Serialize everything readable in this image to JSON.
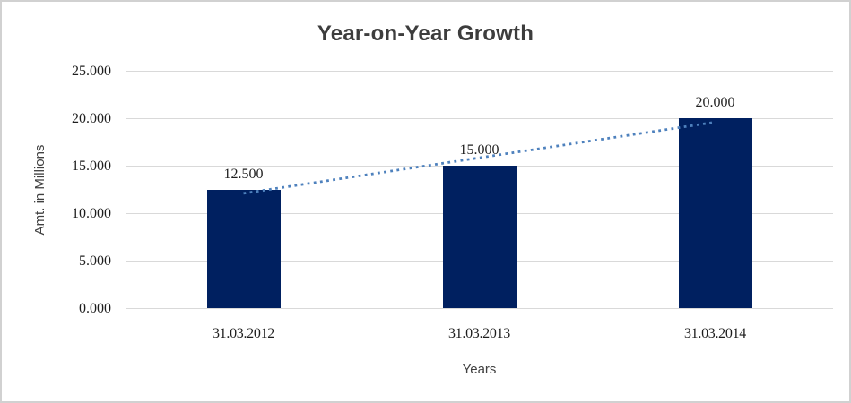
{
  "chart_data": {
    "type": "bar",
    "title": "Year-on-Year Growth",
    "xlabel": "Years",
    "ylabel": "Amt. in Millions",
    "categories": [
      "31.03.2012",
      "31.03.2013",
      "31.03.2014"
    ],
    "values": [
      12500,
      15000,
      20000
    ],
    "data_labels": [
      "12.500",
      "15.000",
      "20.000"
    ],
    "y_ticks": [
      {
        "value": 0,
        "label": "0.000"
      },
      {
        "value": 5000,
        "label": "5.000"
      },
      {
        "value": 10000,
        "label": "10.000"
      },
      {
        "value": 15000,
        "label": "15.000"
      },
      {
        "value": 20000,
        "label": "20.000"
      },
      {
        "value": 25000,
        "label": "25.000"
      }
    ],
    "ylim": [
      0,
      25000
    ],
    "grid": "horizontal",
    "legend": "none",
    "colors": {
      "bar": "#002060",
      "trendline": "#4e81bd",
      "gridline": "#d9d9d9",
      "title_text": "#3d3d3d",
      "axis_title_text": "#404040",
      "tick_text": "#1e1e1e",
      "frame_border": "#d1d1d1",
      "background": "#ffffff"
    },
    "trendline": {
      "type": "linear",
      "style": "dotted"
    }
  }
}
